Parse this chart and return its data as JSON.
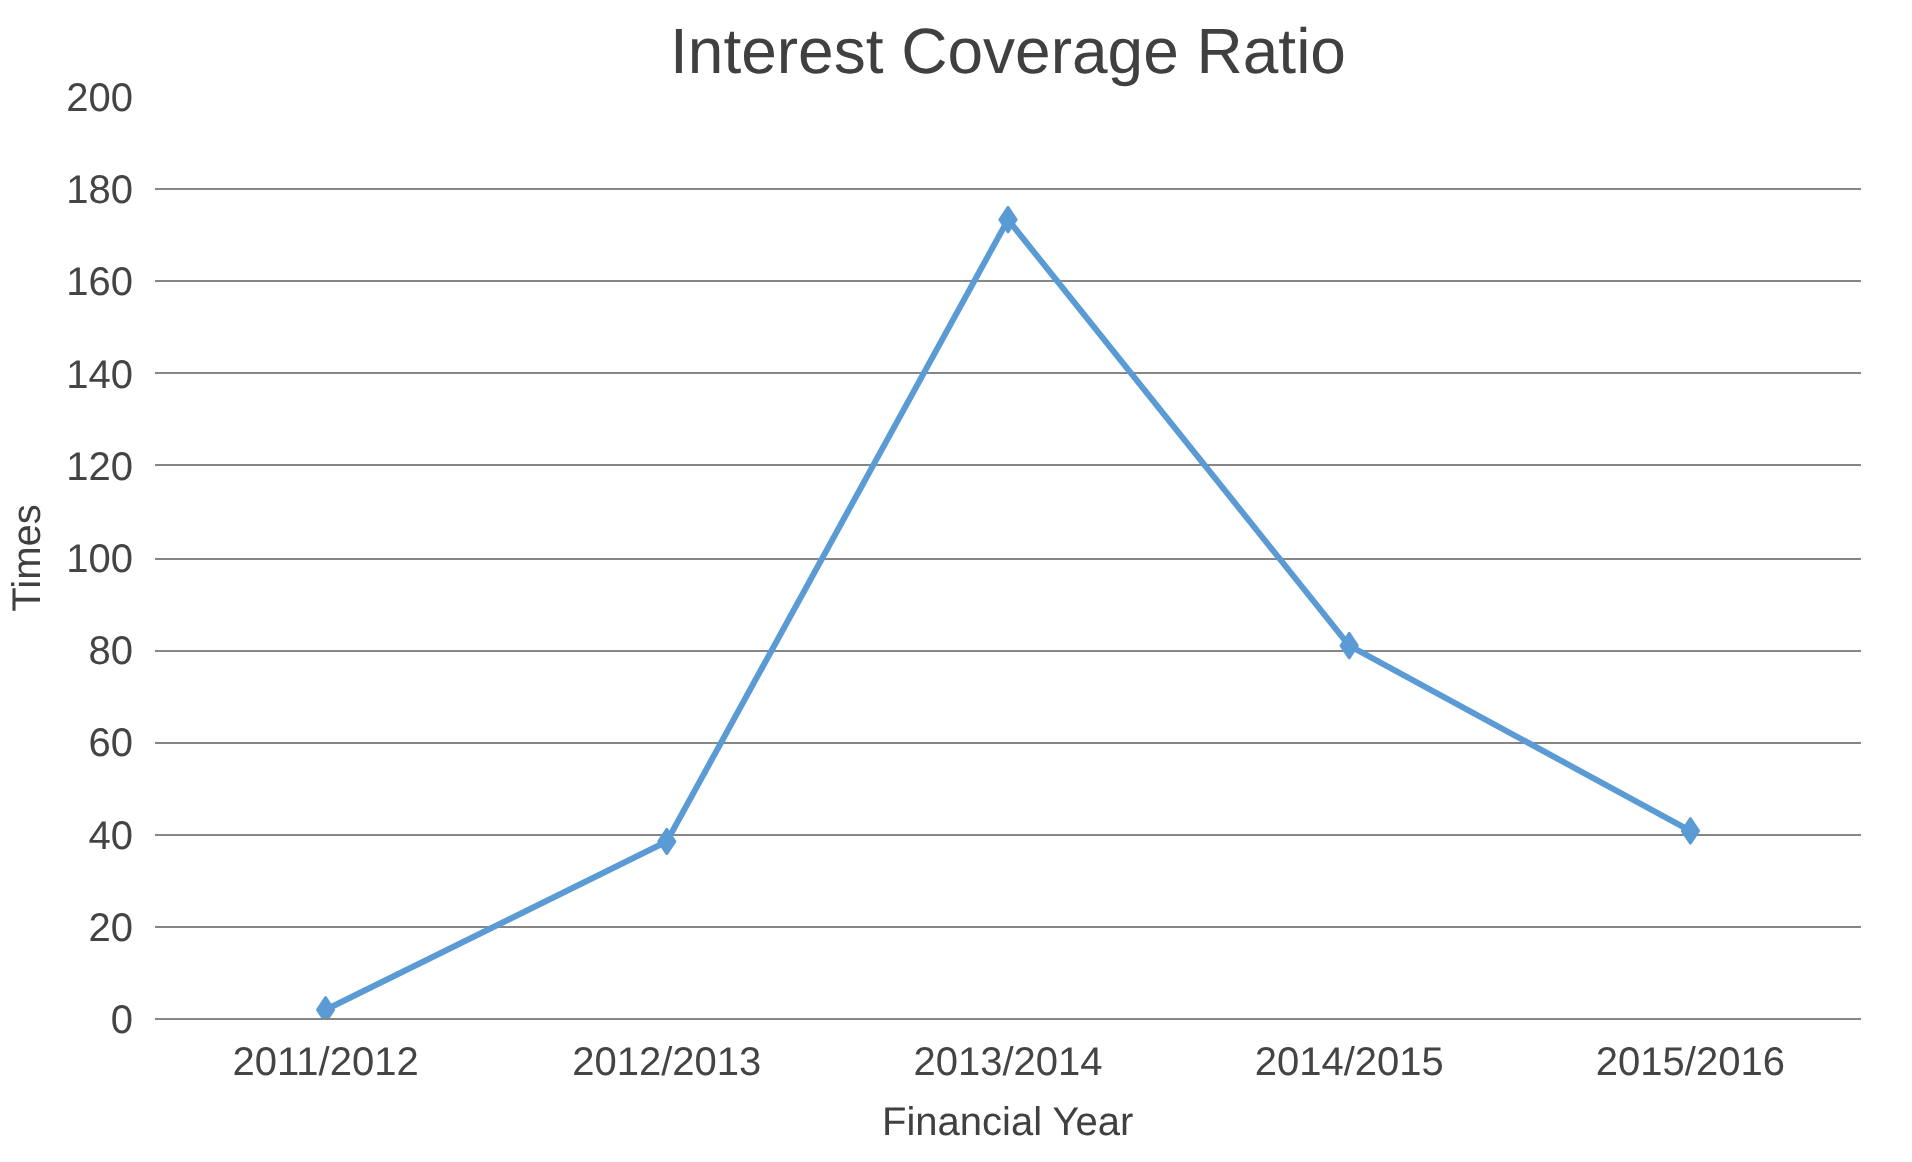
{
  "chart_data": {
    "type": "line",
    "title": "Interest Coverage Ratio",
    "xlabel": "Financial Year",
    "ylabel": "Times",
    "categories": [
      "2011/2012",
      "2012/2013",
      "2013/2014",
      "2014/2015",
      "2015/2016"
    ],
    "series": [
      {
        "color": "#5b9bd5",
        "values": [
          2,
          38.5,
          173.4,
          81,
          40.8
        ]
      }
    ],
    "ylim": [
      0,
      200
    ],
    "yticks": [
      0,
      20,
      40,
      60,
      80,
      100,
      120,
      140,
      160,
      180,
      200
    ],
    "grid": "y",
    "marker": "diamond",
    "line_style": "solid"
  }
}
